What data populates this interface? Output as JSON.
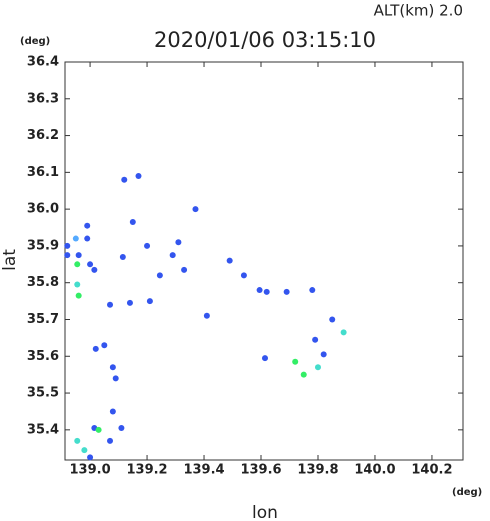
{
  "chart_data": {
    "type": "scatter",
    "title": "2020/01/06 03:15:10",
    "subtitle": "ALT(km)  2.0",
    "x_label": "lon",
    "y_label": "lat",
    "x_unit": "(deg)",
    "y_unit": "(deg)",
    "xlim": [
      138.912,
      140.309
    ],
    "ylim": [
      35.318,
      36.4
    ],
    "xticks": [
      {
        "value": 139,
        "label": "139.0"
      },
      139.2,
      139.4,
      139.6,
      139.8,
      {
        "value": 140,
        "label": "140.0"
      },
      140.2
    ],
    "yticks": [
      35.4,
      35.5,
      35.6,
      35.7,
      35.8,
      35.9,
      {
        "value": 36,
        "label": "36.0"
      },
      36.1,
      36.2,
      36.3,
      36.4
    ],
    "x": [
      138.99,
      138.95,
      138.99,
      138.92,
      138.92,
      138.96,
      139.0,
      138.955,
      138.955,
      138.96,
      139.015,
      139.12,
      139.17,
      139.15,
      139.2,
      139.29,
      139.31,
      139.33,
      139.02,
      139.05,
      139.08,
      139.09,
      139.08,
      139.11,
      139.015,
      139.03,
      138.955,
      138.98,
      139.0,
      139.07,
      139.49,
      139.54,
      139.595,
      139.62,
      139.69,
      139.78,
      139.85,
      139.89,
      139.79,
      139.82,
      139.72,
      139.75,
      139.8,
      139.614,
      139.07,
      139.14,
      139.21,
      139.41,
      139.37,
      139.115,
      139.245
    ],
    "y": [
      35.92,
      35.92,
      35.955,
      35.9,
      35.875,
      35.875,
      35.85,
      35.85,
      35.795,
      35.765,
      35.835,
      36.08,
      36.09,
      35.965,
      35.9,
      35.875,
      35.91,
      35.835,
      35.62,
      35.63,
      35.57,
      35.54,
      35.45,
      35.405,
      35.405,
      35.4,
      35.37,
      35.345,
      35.325,
      35.37,
      35.86,
      35.82,
      35.78,
      35.775,
      35.775,
      35.78,
      35.7,
      35.665,
      35.645,
      35.605,
      35.585,
      35.55,
      35.57,
      35.595,
      35.74,
      35.745,
      35.75,
      35.71,
      36.0,
      35.87,
      35.82
    ],
    "colors": [
      "#3355ee",
      "#55aaff",
      "#3355ee",
      "#3355ee",
      "#3355ee",
      "#3355ee",
      "#3355ee",
      "#33ee66",
      "#44ddcc",
      "#33ee66",
      "#3355ee",
      "#3355ee",
      "#3355ee",
      "#3355ee",
      "#3355ee",
      "#3355ee",
      "#3355ee",
      "#3355ee",
      "#3355ee",
      "#3355ee",
      "#3355ee",
      "#3355ee",
      "#3355ee",
      "#3355ee",
      "#3355ee",
      "#33ee66",
      "#44ddcc",
      "#44ddcc",
      "#3355ee",
      "#3355ee",
      "#3355ee",
      "#3355ee",
      "#3355ee",
      "#3355ee",
      "#3355ee",
      "#3355ee",
      "#3355ee",
      "#44ddcc",
      "#3355ee",
      "#3355ee",
      "#33ee66",
      "#33ee66",
      "#44ddcc",
      "#3355ee",
      "#3355ee",
      "#3355ee",
      "#3355ee",
      "#3355ee",
      "#3355ee",
      "#3355ee",
      "#3355ee"
    ]
  }
}
